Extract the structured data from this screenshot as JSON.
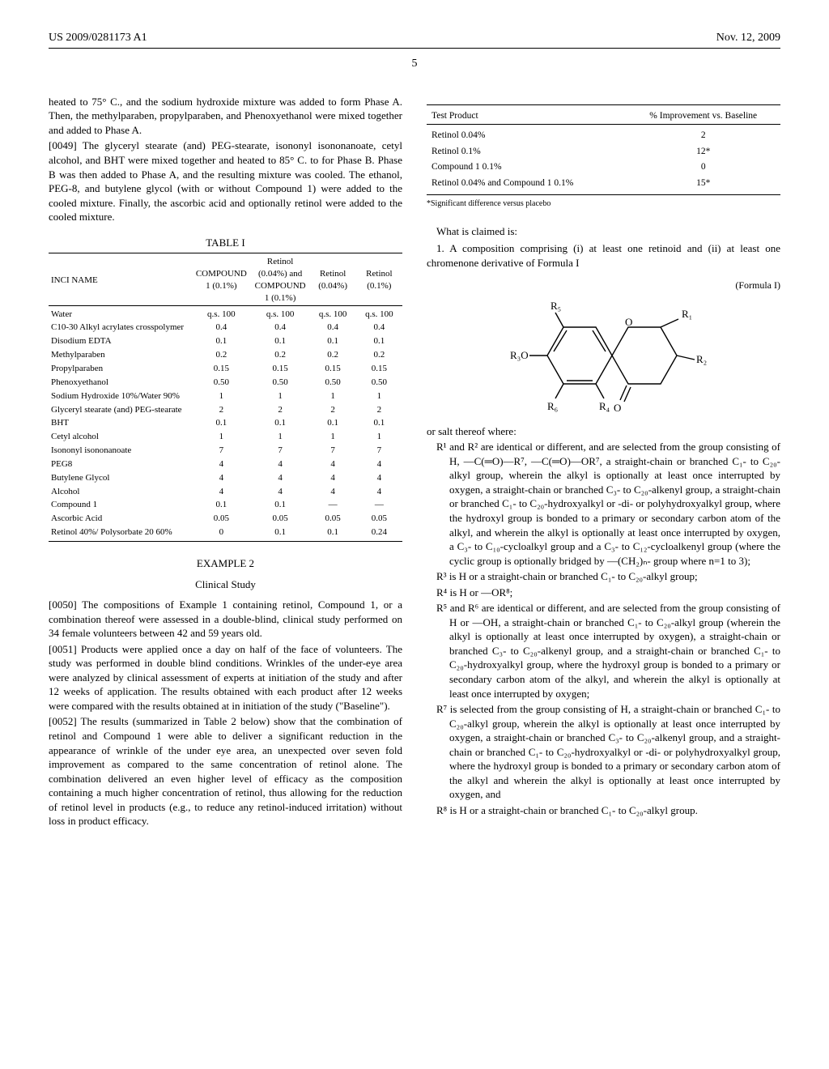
{
  "header": {
    "pub_no": "US 2009/0281173 A1",
    "date": "Nov. 12, 2009"
  },
  "page_number": "5",
  "left": {
    "intro_tail": "heated to 75° C., and the sodium hydroxide mixture was added to form Phase A. Then, the methylparaben, propylparaben, and Phenoxyethanol were mixed together and added to Phase A.",
    "p49_num": "[0049]",
    "p49": " The glyceryl stearate (and) PEG-stearate, isononyl isononanoate, cetyl alcohol, and BHT were mixed together and heated to 85° C. to for Phase B. Phase B was then added to Phase A, and the resulting mixture was cooled. The ethanol, PEG-8, and butylene glycol (with or without Compound 1) were added to the cooled mixture. Finally, the ascorbic acid and optionally retinol were added to the cooled mixture.",
    "table1": {
      "title": "TABLE I",
      "col_headers": {
        "inci": "INCI NAME",
        "c1": "COMPOUND 1 (0.1%)",
        "c2": "Retinol (0.04%) and COMPOUND 1 (0.1%)",
        "c3": "Retinol (0.04%)",
        "c4": "Retinol (0.1%)"
      },
      "rows": [
        {
          "n": "Water",
          "a": "q.s. 100",
          "b": "q.s. 100",
          "c": "q.s. 100",
          "d": "q.s. 100"
        },
        {
          "n": "C10-30 Alkyl acrylates crosspolymer",
          "a": "0.4",
          "b": "0.4",
          "c": "0.4",
          "d": "0.4"
        },
        {
          "n": "Disodium EDTA",
          "a": "0.1",
          "b": "0.1",
          "c": "0.1",
          "d": "0.1"
        },
        {
          "n": "Methylparaben",
          "a": "0.2",
          "b": "0.2",
          "c": "0.2",
          "d": "0.2"
        },
        {
          "n": "Propylparaben",
          "a": "0.15",
          "b": "0.15",
          "c": "0.15",
          "d": "0.15"
        },
        {
          "n": "Phenoxyethanol",
          "a": "0.50",
          "b": "0.50",
          "c": "0.50",
          "d": "0.50"
        },
        {
          "n": "Sodium Hydroxide 10%/Water 90%",
          "a": "1",
          "b": "1",
          "c": "1",
          "d": "1"
        },
        {
          "n": "Glyceryl stearate (and) PEG-stearate",
          "a": "2",
          "b": "2",
          "c": "2",
          "d": "2"
        },
        {
          "n": "BHT",
          "a": "0.1",
          "b": "0.1",
          "c": "0.1",
          "d": "0.1"
        },
        {
          "n": "Cetyl alcohol",
          "a": "1",
          "b": "1",
          "c": "1",
          "d": "1"
        },
        {
          "n": "Isononyl isononanoate",
          "a": "7",
          "b": "7",
          "c": "7",
          "d": "7"
        },
        {
          "n": "PEG8",
          "a": "4",
          "b": "4",
          "c": "4",
          "d": "4"
        },
        {
          "n": "Butylene Glycol",
          "a": "4",
          "b": "4",
          "c": "4",
          "d": "4"
        },
        {
          "n": "Alcohol",
          "a": "4",
          "b": "4",
          "c": "4",
          "d": "4"
        },
        {
          "n": "Compound 1",
          "a": "0.1",
          "b": "0.1",
          "c": "—",
          "d": "—"
        },
        {
          "n": "Ascorbic Acid",
          "a": "0.05",
          "b": "0.05",
          "c": "0.05",
          "d": "0.05"
        },
        {
          "n": "Retinol 40%/ Polysorbate 20 60%",
          "a": "0",
          "b": "0.1",
          "c": "0.1",
          "d": "0.24"
        }
      ]
    },
    "example2_title": "EXAMPLE 2",
    "example2_sub": "Clinical Study",
    "p50_num": "[0050]",
    "p50": " The compositions of Example 1 containing retinol, Compound 1, or a combination thereof were assessed in a double-blind, clinical study performed on 34 female volunteers between 42 and 59 years old.",
    "p51_num": "[0051]",
    "p51": " Products were applied once a day on half of the face of volunteers. The study was performed in double blind conditions. Wrinkles of the under-eye area were analyzed by clinical assessment of experts at initiation of the study and after 12 weeks of application. The results obtained with each product after 12 weeks were compared with the results obtained at in initiation of the study (\"Baseline\").",
    "p52_num": "[0052]",
    "p52": " The results (summarized in Table 2 below) show that the combination of retinol and Compound 1 were able to deliver a significant reduction in the appearance of wrinkle of the under eye area, an unexpected over seven fold improvement as compared to the same concentration of retinol alone. The combination delivered an even higher level of efficacy as the composition containing a much higher concentration of retinol, thus allowing for the reduction of retinol level in products (e.g., to reduce any retinol-induced irritation) without loss in product efficacy."
  },
  "right": {
    "table2": {
      "h1": "Test Product",
      "h2": "% Improvement vs. Baseline",
      "rows": [
        {
          "p": "Retinol 0.04%",
          "v": "2"
        },
        {
          "p": "Retinol 0.1%",
          "v": "12*"
        },
        {
          "p": "Compound 1 0.1%",
          "v": "0"
        },
        {
          "p": "Retinol 0.04% and Compound 1 0.1%",
          "v": "15*"
        }
      ],
      "footnote": "*Significant difference versus placebo"
    },
    "what_claimed": "What is claimed is:",
    "claim1_lead": "1. A composition comprising (i) at least one retinoid and (ii) at least one chromenone derivative of Formula I",
    "formula_label": "(Formula I)",
    "formula": {
      "labels": {
        "R1": "R₁",
        "R2": "R₂",
        "R3O": "R₃O",
        "R4": "R₄",
        "R5": "R₅",
        "R6": "R₆",
        "O": "O",
        "Odbl": "O"
      }
    },
    "or_salt": "or salt thereof where:",
    "R1R2": "R¹ and R² are identical or different, and are selected from the group consisting of H, —C(═O)—R⁷, —C(═O)—OR⁷, a straight-chain or branched C₁- to C₂₀-alkyl group, wherein the alkyl is optionally at least once interrupted by oxygen, a straight-chain or branched C₃- to C₂₀-alkenyl group, a straight-chain or branched C₁- to C₂₀-hydroxyalkyl or -di- or polyhydroxyalkyl group, where the hydroxyl group is bonded to a primary or secondary carbon atom of the alkyl, and wherein the alkyl is optionally at least once interrupted by oxygen, a C₃- to C₁₀-cycloalkyl group and a C₃- to C₁₂-cycloalkenyl group (where the cyclic group is optionally bridged by —(CH₂)ₙ- group where n=1 to 3);",
    "R3": "R³ is H or a straight-chain or branched C₁- to C₂₀-alkyl group;",
    "R4": "R⁴ is H or —OR⁸;",
    "R5R6": "R⁵ and R⁶ are identical or different, and are selected from the group consisting of H or —OH, a straight-chain or branched C₁- to C₂₀-alkyl group (wherein the alkyl is optionally at least once interrupted by oxygen), a straight-chain or branched C₃- to C₂₀-alkenyl group, and a straight-chain or branched C₁- to C₂₀-hydroxyalkyl group, where the hydroxyl group is bonded to a primary or secondary carbon atom of the alkyl, and wherein the alkyl is optionally at least once interrupted by oxygen;",
    "R7": "R⁷ is selected from the group consisting of H, a straight-chain or branched C₁- to C₂₀-alkyl group, wherein the alkyl is optionally at least once interrupted by oxygen, a straight-chain or branched C₃- to C₂₀-alkenyl group, and a straight-chain or branched C₁- to C₂₀-hydroxyalkyl or -di- or polyhydroxyalkyl group, where the hydroxyl group is bonded to a primary or secondary carbon atom of the alkyl and wherein the alkyl is optionally at least once interrupted by oxygen, and",
    "R8": "R⁸ is H or a straight-chain or branched C₁- to C₂₀-alkyl group."
  }
}
